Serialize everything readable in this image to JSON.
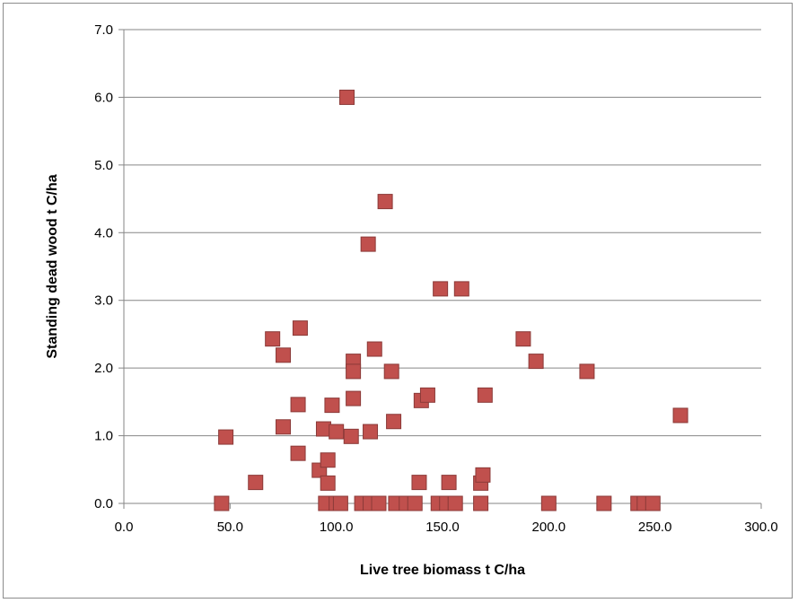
{
  "chart_data": {
    "type": "scatter",
    "title": "",
    "xlabel": "Live tree biomass t C/ha",
    "ylabel": "Standing dead wood t C/ha",
    "xlim": [
      0,
      300
    ],
    "ylim": [
      0,
      7
    ],
    "x_ticks": [
      "0.0",
      "50.0",
      "100.0",
      "150.0",
      "200.0",
      "250.0",
      "300.0"
    ],
    "y_ticks": [
      "0.0",
      "1.0",
      "2.0",
      "3.0",
      "4.0",
      "5.0",
      "6.0",
      "7.0"
    ],
    "grid": "horizontal",
    "legend": "none",
    "marker": "square",
    "marker_color": "#C0504D",
    "marker_edge_color": "#8B3A38",
    "points": [
      {
        "x": 46,
        "y": 0.0
      },
      {
        "x": 48,
        "y": 0.98
      },
      {
        "x": 62,
        "y": 0.31
      },
      {
        "x": 70,
        "y": 2.43
      },
      {
        "x": 75,
        "y": 2.19
      },
      {
        "x": 75,
        "y": 1.13
      },
      {
        "x": 82,
        "y": 1.46
      },
      {
        "x": 82,
        "y": 0.74
      },
      {
        "x": 83,
        "y": 2.59
      },
      {
        "x": 92,
        "y": 0.49
      },
      {
        "x": 94,
        "y": 1.1
      },
      {
        "x": 95,
        "y": 0.0
      },
      {
        "x": 96,
        "y": 0.3
      },
      {
        "x": 96,
        "y": 0.64
      },
      {
        "x": 98,
        "y": 1.45
      },
      {
        "x": 100,
        "y": 1.06
      },
      {
        "x": 100,
        "y": 0.0
      },
      {
        "x": 102,
        "y": 0.0
      },
      {
        "x": 105,
        "y": 6.0
      },
      {
        "x": 107,
        "y": 0.99
      },
      {
        "x": 108,
        "y": 2.1
      },
      {
        "x": 108,
        "y": 1.95
      },
      {
        "x": 108,
        "y": 1.55
      },
      {
        "x": 112,
        "y": 0.0
      },
      {
        "x": 115,
        "y": 3.83
      },
      {
        "x": 116,
        "y": 1.06
      },
      {
        "x": 116,
        "y": 0.0
      },
      {
        "x": 118,
        "y": 2.28
      },
      {
        "x": 120,
        "y": 0.0
      },
      {
        "x": 123,
        "y": 4.46
      },
      {
        "x": 126,
        "y": 1.95
      },
      {
        "x": 127,
        "y": 1.21
      },
      {
        "x": 128,
        "y": 0.0
      },
      {
        "x": 133,
        "y": 0.0
      },
      {
        "x": 137,
        "y": 0.0
      },
      {
        "x": 139,
        "y": 0.31
      },
      {
        "x": 140,
        "y": 1.52
      },
      {
        "x": 143,
        "y": 1.6
      },
      {
        "x": 148,
        "y": 0.0
      },
      {
        "x": 149,
        "y": 3.17
      },
      {
        "x": 152,
        "y": 0.0
      },
      {
        "x": 153,
        "y": 0.31
      },
      {
        "x": 156,
        "y": 0.0
      },
      {
        "x": 159,
        "y": 3.17
      },
      {
        "x": 168,
        "y": 0.0
      },
      {
        "x": 168,
        "y": 0.3
      },
      {
        "x": 169,
        "y": 0.42
      },
      {
        "x": 170,
        "y": 1.6
      },
      {
        "x": 188,
        "y": 2.43
      },
      {
        "x": 194,
        "y": 2.1
      },
      {
        "x": 200,
        "y": 0.0
      },
      {
        "x": 218,
        "y": 1.95
      },
      {
        "x": 226,
        "y": 0.0
      },
      {
        "x": 242,
        "y": 0.0
      },
      {
        "x": 245,
        "y": 0.0
      },
      {
        "x": 249,
        "y": 0.0
      },
      {
        "x": 262,
        "y": 1.3
      }
    ]
  }
}
